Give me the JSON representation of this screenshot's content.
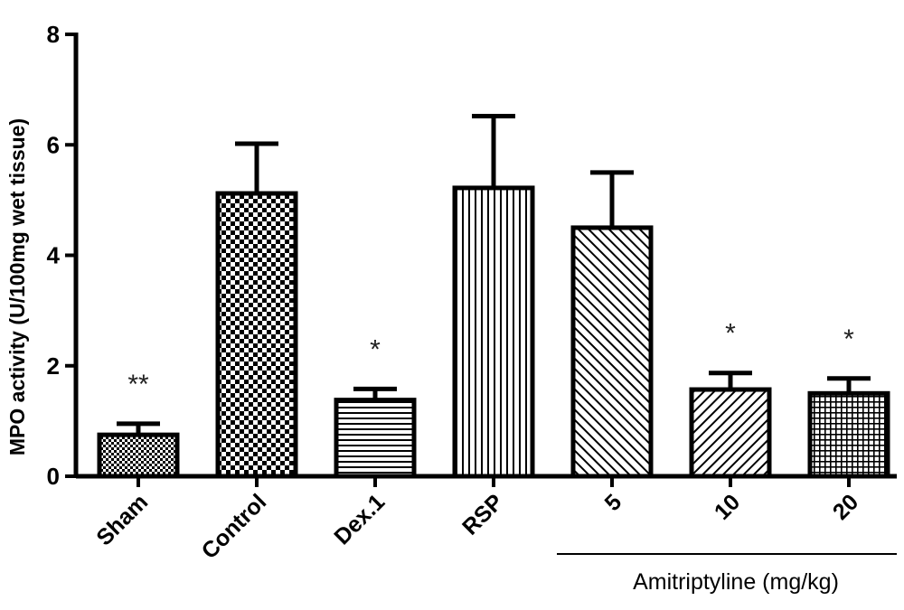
{
  "chart_data": {
    "type": "bar",
    "title": "",
    "ylabel": "MPO activity (U/100mg wet tissue)",
    "xlabel": "",
    "ylim": [
      0,
      8
    ],
    "yticks": [
      0,
      2,
      4,
      6,
      8
    ],
    "categories": [
      "Sham",
      "Control",
      "Dex.1",
      "RSP",
      "5",
      "10",
      "20"
    ],
    "values": [
      0.75,
      5.12,
      1.38,
      5.22,
      4.5,
      1.57,
      1.5
    ],
    "errors": [
      0.2,
      0.9,
      0.2,
      1.3,
      1.0,
      0.3,
      0.27
    ],
    "significance": [
      "**",
      "",
      "*",
      "",
      "",
      "*",
      "*"
    ],
    "patterns": [
      "fine-checker",
      "checker",
      "horizontal",
      "vertical",
      "diagonal-forward",
      "diagonal-back",
      "grid"
    ],
    "group": {
      "label": "Amitriptyline (mg/kg)",
      "from": 4,
      "to": 6
    },
    "grid": false,
    "legend": "none",
    "bar_color": "#000000",
    "background": "#ffffff"
  }
}
